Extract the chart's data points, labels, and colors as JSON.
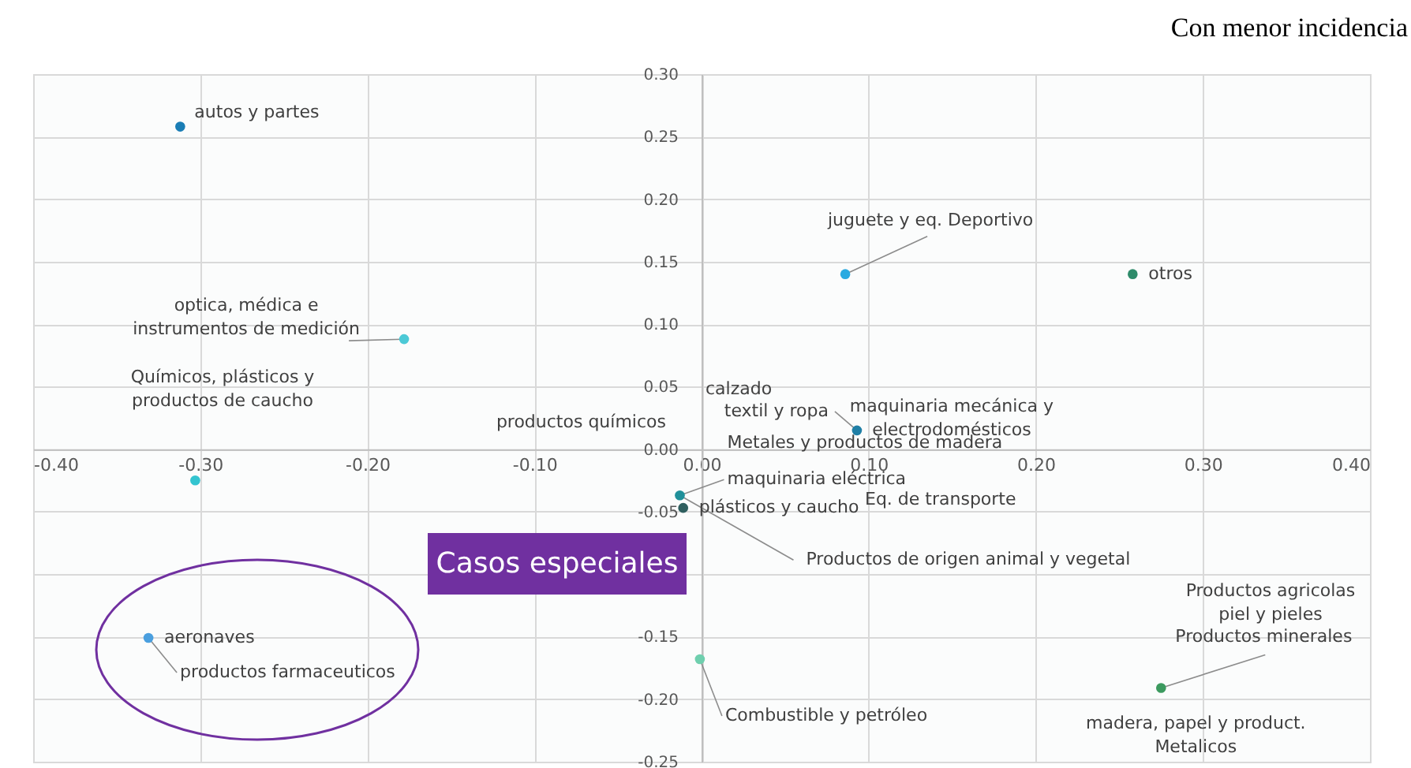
{
  "chart_data": {
    "type": "scatter",
    "title": "Con menor incidencia",
    "x": [
      -0.312,
      -0.178,
      -0.303,
      0.086,
      0.258,
      0.093,
      -0.013,
      -0.011,
      -0.001,
      -0.331,
      0.275
    ],
    "values": [
      0.258,
      0.088,
      -0.025,
      0.14,
      0.14,
      0.015,
      -0.037,
      -0.047,
      -0.168,
      -0.151,
      -0.191
    ],
    "colors": [
      "#1a7db5",
      "#4cc9d6",
      "#33c4d0",
      "#29aae1",
      "#2e8b6a",
      "#1f7fa6",
      "#20909a",
      "#2f5f5f",
      "#6fcfae",
      "#4a9fdf",
      "#3c9a5f"
    ],
    "xlim": [
      -0.4,
      0.4
    ],
    "ylim": [
      -0.25,
      0.3
    ],
    "xticks": [
      {
        "value": -0.4,
        "label": "-0.40"
      },
      {
        "value": -0.3,
        "label": "-0.30"
      },
      {
        "value": -0.2,
        "label": "-0.20"
      },
      {
        "value": -0.1,
        "label": "-0.10"
      },
      {
        "value": 0,
        "label": "0.00"
      },
      {
        "value": 0.1,
        "label": "0.10"
      },
      {
        "value": 0.2,
        "label": "0.20"
      },
      {
        "value": 0.3,
        "label": "0.30"
      },
      {
        "value": 0.4,
        "label": "0.40"
      }
    ],
    "yticks": [
      {
        "value": -0.25,
        "label": "-0.25"
      },
      {
        "value": -0.2,
        "label": "-0.20"
      },
      {
        "value": -0.15,
        "label": "-0.15"
      },
      {
        "value": -0.1,
        "label": null
      },
      {
        "value": -0.05,
        "label": "-0.05"
      },
      {
        "value": 0,
        "label": "0.00"
      },
      {
        "value": 0.05,
        "label": "0.05"
      },
      {
        "value": 0.1,
        "label": "0.10"
      },
      {
        "value": 0.15,
        "label": "0.15"
      },
      {
        "value": 0.2,
        "label": "0.20"
      },
      {
        "value": 0.25,
        "label": "0.25"
      },
      {
        "value": 0.3,
        "label": "0.30"
      }
    ],
    "grid": true,
    "marker": "circle",
    "annotations": [
      {
        "text": "autos y partes",
        "x": -0.312,
        "y": 0.258
      },
      {
        "text": "optica, médica e\ninstrumentos  de medición",
        "x": -0.178,
        "y": 0.088
      },
      "Químicos, plásticos y\nproductos de caucho",
      "productos químicos",
      {
        "text": "juguete y eq. Deportivo",
        "x": 0.086,
        "y": 0.14
      },
      {
        "text": "otros",
        "x": 0.258,
        "y": 0.14
      },
      "calzado",
      {
        "text": "textil y ropa",
        "x": 0.093,
        "y": 0.015
      },
      {
        "text": "maquinaria mecánica y\nelectrodomésticos",
        "x": 0.093,
        "y": 0.015
      },
      {
        "text": "Metales y productos de madera",
        "x": 0.093,
        "y": 0.015
      },
      {
        "text": "maquinaria eléctrica",
        "x": -0.013,
        "y": -0.037
      },
      "Eq. de transporte",
      {
        "text": "plásticos y caucho",
        "x": -0.011,
        "y": -0.047
      },
      {
        "text": "Productos de origen animal y vegetal",
        "x": -0.013,
        "y": -0.037
      },
      {
        "text": "Combustible y petróleo",
        "x": -0.001,
        "y": -0.168
      },
      {
        "text": "aeronaves",
        "x": -0.331,
        "y": -0.151
      },
      {
        "text": "productos farmaceuticos",
        "x": -0.331,
        "y": -0.151
      },
      "Productos agricolas\npiel y pieles",
      {
        "text": "Productos minerales",
        "x": 0.275,
        "y": -0.191
      },
      {
        "text": "madera, papel y product.\nMetalicos",
        "x": 0.275,
        "y": -0.191
      },
      "Casos especiales"
    ]
  }
}
